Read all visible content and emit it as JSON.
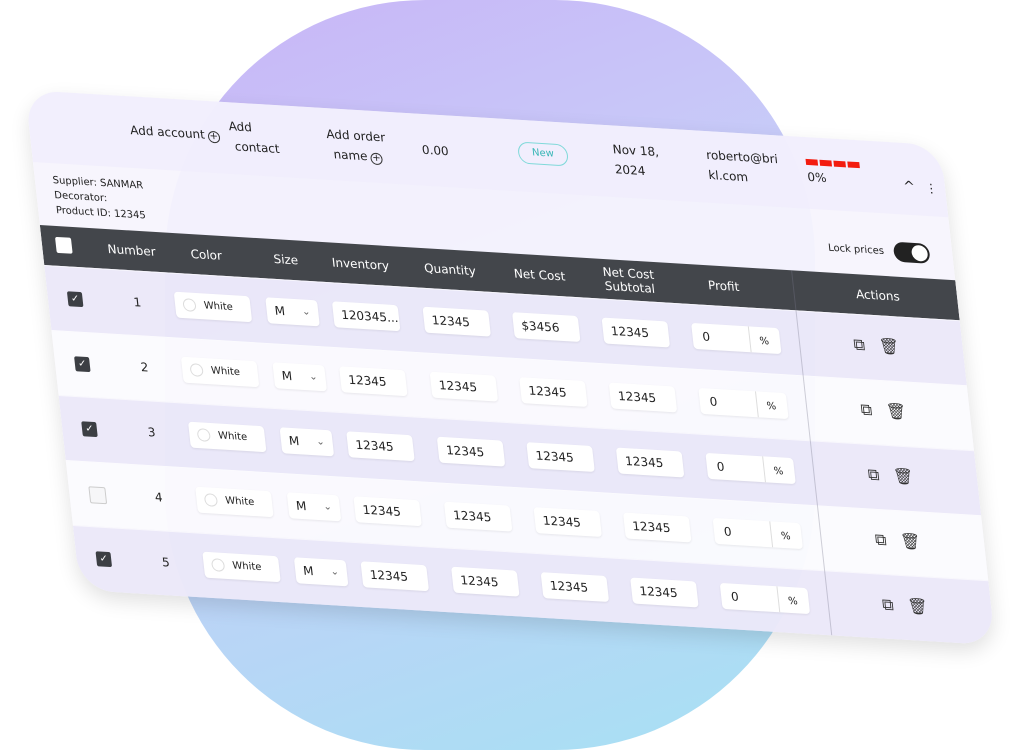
{
  "header": {
    "add_account": "Add account",
    "add_contact_1": "Add",
    "add_contact_2": "contact",
    "add_order_1": "Add order",
    "add_order_2": "name",
    "amount": "0.00",
    "status": "New",
    "date_1": "Nov 18,",
    "date_2": "2024",
    "email_1": "roberto@bri",
    "email_2": "kl.com",
    "progress_text": "0%",
    "progress_segments": 4,
    "progress_color": "#f31c0f"
  },
  "info": {
    "supplier": "Supplier: SANMAR",
    "decorator": "Decorator:",
    "product": "Product ID: 12345"
  },
  "lock_prices": {
    "label": "Lock prices",
    "on": true
  },
  "columns": [
    "Number",
    "Color",
    "Size",
    "Inventory",
    "Quantity",
    "Net Cost",
    "Net Cost",
    "Subtotal",
    "Profit",
    "Actions"
  ],
  "rows": [
    {
      "checked": true,
      "number": "1",
      "color": "White",
      "size": "M",
      "inventory": "120345...",
      "quantity": "12345",
      "net_cost": "$3456",
      "subtotal": "12345",
      "profit": "0",
      "unit": "%"
    },
    {
      "checked": true,
      "number": "2",
      "color": "White",
      "size": "M",
      "inventory": "12345",
      "quantity": "12345",
      "net_cost": "12345",
      "subtotal": "12345",
      "profit": "0",
      "unit": "%"
    },
    {
      "checked": true,
      "number": "3",
      "color": "White",
      "size": "M",
      "inventory": "12345",
      "quantity": "12345",
      "net_cost": "12345",
      "subtotal": "12345",
      "profit": "0",
      "unit": "%"
    },
    {
      "checked": false,
      "number": "4",
      "color": "White",
      "size": "M",
      "inventory": "12345",
      "quantity": "12345",
      "net_cost": "12345",
      "subtotal": "12345",
      "profit": "0",
      "unit": "%"
    },
    {
      "checked": true,
      "number": "5",
      "color": "White",
      "size": "M",
      "inventory": "12345",
      "quantity": "12345",
      "net_cost": "12345",
      "subtotal": "12345",
      "profit": "0",
      "unit": "%"
    }
  ]
}
